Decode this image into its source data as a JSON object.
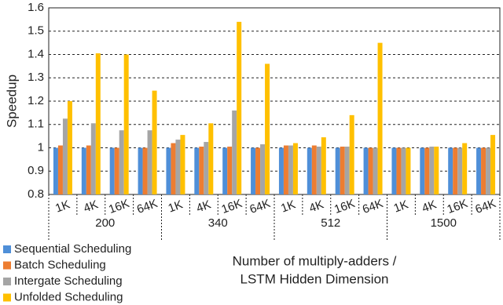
{
  "chart_data": {
    "type": "bar",
    "y_label": "Speedup",
    "x_label": [
      "Number of multiply-adders /",
      "LSTM Hidden Dimension"
    ],
    "categories": [
      "1K",
      "4K",
      "16K",
      "64K",
      "1K",
      "4K",
      "16K",
      "64K",
      "1K",
      "4K",
      "16K",
      "64K",
      "1K",
      "4K",
      "16K",
      "64K"
    ],
    "groups": [
      "200",
      "340",
      "512",
      "1500"
    ],
    "series": [
      {
        "name": "Sequential Scheduling",
        "color": "#4f8fd8",
        "values": [
          1.0,
          1.0,
          1.0,
          1.0,
          1.0,
          1.0,
          1.0,
          1.0,
          1.0,
          1.0,
          1.0,
          1.0,
          1.0,
          1.0,
          1.0,
          1.0
        ]
      },
      {
        "name": "Batch Scheduling",
        "color": "#ed7d31",
        "values": [
          1.01,
          1.01,
          1.0,
          1.0,
          1.02,
          1.005,
          1.005,
          1.0,
          1.01,
          1.01,
          1.005,
          1.0,
          1.0,
          1.0,
          1.0,
          1.0
        ]
      },
      {
        "name": "Intergate Scheduling",
        "color": "#a5a5a5",
        "values": [
          1.125,
          1.105,
          1.075,
          1.075,
          1.035,
          1.025,
          1.16,
          1.015,
          1.01,
          1.005,
          1.005,
          1.0,
          1.0,
          1.005,
          1.0,
          1.0
        ]
      },
      {
        "name": "Unfolded Scheduling",
        "color": "#ffc000",
        "values": [
          1.2,
          1.405,
          1.4,
          1.245,
          1.055,
          1.105,
          1.54,
          1.36,
          1.02,
          1.045,
          1.14,
          1.45,
          1.0,
          1.005,
          1.02,
          1.055
        ]
      }
    ],
    "ylim": [
      0.8,
      1.6
    ],
    "yticks": [
      0.8,
      0.9,
      1,
      1.1,
      1.2,
      1.3,
      1.4,
      1.5,
      1.6
    ],
    "grid": true
  }
}
